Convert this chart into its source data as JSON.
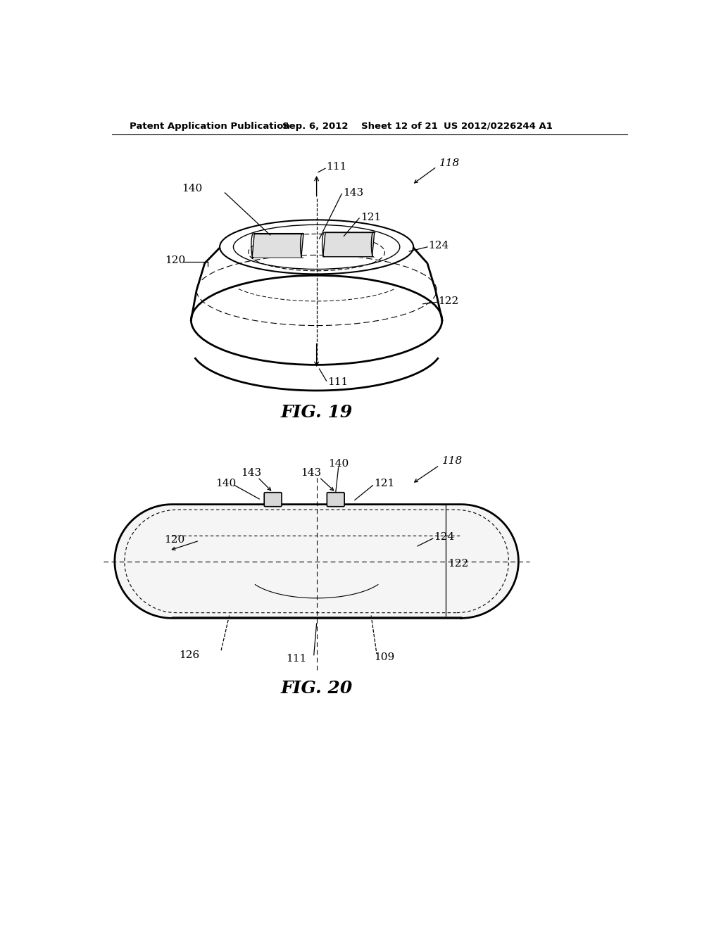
{
  "background_color": "#ffffff",
  "header_text": "Patent Application Publication",
  "header_date": "Sep. 6, 2012",
  "header_sheet": "Sheet 12 of 21",
  "header_patent": "US 2012/0226244 A1",
  "fig19_label": "FIG. 19",
  "fig20_label": "FIG. 20",
  "line_color": "#000000",
  "annotation_fontsize": 11,
  "header_fontsize": 10,
  "fig_label_fontsize": 18
}
